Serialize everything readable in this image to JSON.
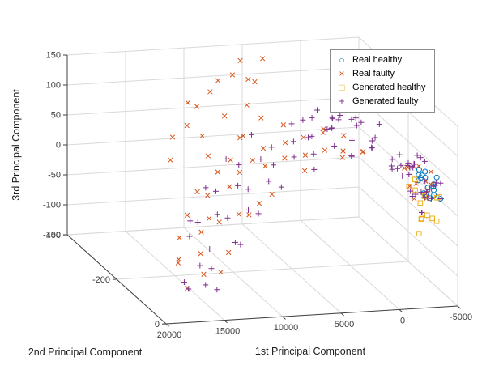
{
  "chart_data": {
    "type": "scatter",
    "subtype": "scatter3d",
    "title": "",
    "xlabel": "1st Principal Component",
    "ylabel": "2nd Principal Component",
    "zlabel": "3rd Principal Component",
    "x_ticks": [
      20000,
      15000,
      10000,
      5000,
      0,
      -5000
    ],
    "y_ticks": [
      -400,
      -200,
      0
    ],
    "z_ticks": [
      150,
      100,
      50,
      0,
      -50,
      -100,
      -150
    ],
    "x_range": [
      -5000,
      20000
    ],
    "x_reversed": true,
    "y_range": [
      -400,
      0
    ],
    "z_range": [
      -150,
      150
    ],
    "grid": true,
    "axis_color": "#404040",
    "grid_color": "#d9d9d9",
    "tick_label_color": "#3d3d3d",
    "legend_position": "northeast",
    "series": [
      {
        "name": "Real healthy",
        "marker": "circle",
        "glyph": "○",
        "color": "#0072BD",
        "points": [
          [
            -3800,
            -80,
            10
          ],
          [
            -3950,
            -110,
            20
          ],
          [
            -4100,
            -70,
            5
          ],
          [
            -4200,
            -120,
            25
          ],
          [
            -4350,
            -90,
            15
          ],
          [
            -4450,
            -130,
            30
          ],
          [
            -4550,
            -75,
            8
          ],
          [
            -4650,
            -115,
            22
          ],
          [
            -4750,
            -85,
            12
          ],
          [
            -4850,
            -125,
            28
          ],
          [
            -4950,
            -95,
            18
          ],
          [
            -5000,
            -70,
            3
          ],
          [
            -4050,
            -100,
            32
          ],
          [
            -4300,
            -65,
            26
          ],
          [
            -4500,
            -105,
            -2
          ],
          [
            -4700,
            -135,
            14
          ],
          [
            -4900,
            -80,
            35
          ],
          [
            -4150,
            -90,
            0
          ]
        ]
      },
      {
        "name": "Real faulty",
        "marker": "x",
        "glyph": "×",
        "color": "#D95319",
        "points": [
          [
            16500,
            -80,
            -125
          ],
          [
            16000,
            -140,
            -105
          ],
          [
            15500,
            -60,
            -95
          ],
          [
            15100,
            -180,
            -115
          ],
          [
            14700,
            -110,
            -80
          ],
          [
            14200,
            -220,
            -95
          ],
          [
            13800,
            -150,
            -60
          ],
          [
            13400,
            -90,
            -105
          ],
          [
            12900,
            -250,
            -70
          ],
          [
            12500,
            -180,
            -50
          ],
          [
            12100,
            -120,
            -85
          ],
          [
            11600,
            -270,
            -40
          ],
          [
            11200,
            -200,
            -65
          ],
          [
            10800,
            -140,
            -30
          ],
          [
            10300,
            -290,
            -55
          ],
          [
            9900,
            -220,
            -15
          ],
          [
            9500,
            -160,
            -40
          ],
          [
            9000,
            -310,
            -25
          ],
          [
            8600,
            -240,
            0
          ],
          [
            8200,
            -180,
            -30
          ],
          [
            7700,
            -320,
            -10
          ],
          [
            7300,
            -250,
            15
          ],
          [
            6900,
            -190,
            -20
          ],
          [
            6400,
            -330,
            25
          ],
          [
            6000,
            -260,
            0
          ],
          [
            5600,
            -200,
            35
          ],
          [
            5100,
            -310,
            10
          ],
          [
            4700,
            -240,
            45
          ],
          [
            4300,
            -180,
            20
          ],
          [
            3800,
            -290,
            55
          ],
          [
            3400,
            -220,
            30
          ],
          [
            3000,
            -160,
            60
          ],
          [
            2500,
            -270,
            40
          ],
          [
            2100,
            -210,
            70
          ],
          [
            1700,
            -150,
            50
          ],
          [
            1200,
            -250,
            60
          ],
          [
            800,
            -190,
            45
          ],
          [
            400,
            -130,
            65
          ],
          [
            -100,
            -230,
            55
          ],
          [
            -500,
            -170,
            50
          ],
          [
            12000,
            -360,
            -20
          ],
          [
            11400,
            -380,
            10
          ],
          [
            10800,
            -350,
            40
          ],
          [
            10300,
            -370,
            70
          ],
          [
            9700,
            -340,
            25
          ],
          [
            9100,
            -390,
            55
          ],
          [
            8600,
            -360,
            90
          ],
          [
            8000,
            -330,
            60
          ],
          [
            7500,
            -380,
            100
          ],
          [
            6900,
            -350,
            120
          ],
          [
            6300,
            -320,
            80
          ],
          [
            5800,
            -370,
            135
          ],
          [
            5200,
            -340,
            110
          ],
          [
            4700,
            -390,
            95
          ],
          [
            4100,
            -360,
            140
          ],
          [
            9400,
            -330,
            -5
          ],
          [
            7100,
            -310,
            30
          ],
          [
            5500,
            -300,
            65
          ],
          [
            -3000,
            -100,
            15
          ],
          [
            -3400,
            -140,
            30
          ],
          [
            -3800,
            -70,
            5
          ],
          [
            -4200,
            -120,
            40
          ],
          [
            -4600,
            -90,
            20
          ],
          [
            -5000,
            -130,
            10
          ],
          [
            -2700,
            -60,
            35
          ],
          [
            -3600,
            -110,
            -10
          ],
          [
            -4000,
            -155,
            25
          ],
          [
            -4400,
            -80,
            45
          ],
          [
            -4800,
            -115,
            0
          ],
          [
            -3200,
            -95,
            50
          ]
        ]
      },
      {
        "name": "Generated healthy",
        "marker": "square",
        "glyph": "□",
        "color": "#EDB120",
        "points": [
          [
            -3700,
            -90,
            -10
          ],
          [
            -3900,
            -120,
            0
          ],
          [
            -4100,
            -60,
            -25
          ],
          [
            -4300,
            -140,
            10
          ],
          [
            -4500,
            -100,
            -35
          ],
          [
            -4700,
            -70,
            5
          ],
          [
            -4900,
            -130,
            -15
          ],
          [
            -5000,
            -85,
            -40
          ],
          [
            -4000,
            -150,
            -5
          ],
          [
            -4600,
            -55,
            12
          ],
          [
            -4200,
            -110,
            -45
          ],
          [
            -3500,
            -75,
            -30
          ],
          [
            -3800,
            -100,
            -65
          ]
        ]
      },
      {
        "name": "Generated faulty",
        "marker": "plus",
        "glyph": "+",
        "color": "#7E2F8E",
        "points": [
          [
            16800,
            -60,
            -118
          ],
          [
            16300,
            -15,
            -95
          ],
          [
            15900,
            -120,
            -130
          ],
          [
            15400,
            -80,
            -88
          ],
          [
            15000,
            -30,
            -110
          ],
          [
            14600,
            -160,
            -70
          ],
          [
            14100,
            -95,
            -100
          ],
          [
            13700,
            -200,
            -60
          ],
          [
            13300,
            -140,
            -85
          ],
          [
            12800,
            -60,
            -45
          ],
          [
            12400,
            -230,
            -75
          ],
          [
            12000,
            -170,
            -40
          ],
          [
            11500,
            -100,
            -65
          ],
          [
            11100,
            -260,
            -30
          ],
          [
            10700,
            -190,
            -55
          ],
          [
            10200,
            -130,
            -20
          ],
          [
            9800,
            -280,
            -45
          ],
          [
            9400,
            -210,
            -10
          ],
          [
            8900,
            -150,
            -35
          ],
          [
            8500,
            -300,
            0
          ],
          [
            8100,
            -230,
            -25
          ],
          [
            7600,
            -170,
            10
          ],
          [
            7200,
            -310,
            -15
          ],
          [
            6800,
            -240,
            20
          ],
          [
            6300,
            -180,
            -5
          ],
          [
            5900,
            -320,
            30
          ],
          [
            5500,
            -250,
            5
          ],
          [
            5000,
            -190,
            40
          ],
          [
            4600,
            -300,
            15
          ],
          [
            4200,
            -230,
            50
          ],
          [
            3700,
            -170,
            25
          ],
          [
            3300,
            -280,
            60
          ],
          [
            2900,
            -210,
            35
          ],
          [
            2400,
            -150,
            70
          ],
          [
            2000,
            -260,
            45
          ],
          [
            1600,
            -200,
            80
          ],
          [
            1100,
            -140,
            55
          ],
          [
            700,
            -240,
            65
          ],
          [
            300,
            -180,
            40
          ],
          [
            -200,
            -120,
            75
          ],
          [
            -600,
            -220,
            50
          ],
          [
            -1000,
            -160,
            60
          ],
          [
            -1500,
            -100,
            45
          ],
          [
            -1900,
            -200,
            55
          ],
          [
            -2300,
            -140,
            35
          ],
          [
            -2800,
            -90,
            50
          ],
          [
            -3200,
            -180,
            30
          ],
          [
            -3600,
            -120,
            40
          ],
          [
            4000,
            -180,
            75
          ],
          [
            3400,
            -230,
            85
          ],
          [
            2800,
            -160,
            95
          ],
          [
            2200,
            -250,
            80
          ],
          [
            1700,
            -190,
            100
          ],
          [
            1100,
            -220,
            90
          ],
          [
            500,
            -170,
            105
          ],
          [
            0,
            -240,
            85
          ],
          [
            -500,
            -200,
            95
          ],
          [
            -1100,
            -150,
            80
          ],
          [
            -1600,
            -230,
            75
          ],
          [
            -2100,
            -180,
            90
          ],
          [
            900,
            -130,
            110
          ],
          [
            2600,
            -210,
            108
          ],
          [
            -300,
            -260,
            70
          ],
          [
            -2600,
            -70,
            10
          ],
          [
            -2800,
            -120,
            25
          ],
          [
            -3000,
            -50,
            -10
          ],
          [
            -3100,
            -140,
            35
          ],
          [
            -3300,
            -90,
            5
          ],
          [
            -3400,
            -160,
            45
          ],
          [
            -3600,
            -60,
            20
          ],
          [
            -3700,
            -130,
            -5
          ],
          [
            -3900,
            -80,
            30
          ],
          [
            -4000,
            -150,
            15
          ],
          [
            -4100,
            -45,
            40
          ],
          [
            -4200,
            -110,
            0
          ],
          [
            -4400,
            -70,
            25
          ],
          [
            -4500,
            -140,
            50
          ],
          [
            -4600,
            -95,
            10
          ],
          [
            -4700,
            -55,
            35
          ],
          [
            -4800,
            -125,
            -15
          ],
          [
            -4900,
            -85,
            20
          ],
          [
            -5000,
            -150,
            42
          ],
          [
            -4950,
            -65,
            5
          ],
          [
            -4300,
            -100,
            55
          ],
          [
            -3500,
            -75,
            -20
          ],
          [
            -3200,
            -115,
            48
          ],
          [
            -2900,
            -145,
            28
          ],
          [
            -2700,
            -95,
            52
          ],
          [
            -4150,
            -135,
            38
          ],
          [
            -4650,
            -105,
            -8
          ],
          [
            -3800,
            -50,
            12
          ],
          [
            -3050,
            -85,
            58
          ],
          [
            -4550,
            -160,
            22
          ]
        ]
      }
    ]
  }
}
